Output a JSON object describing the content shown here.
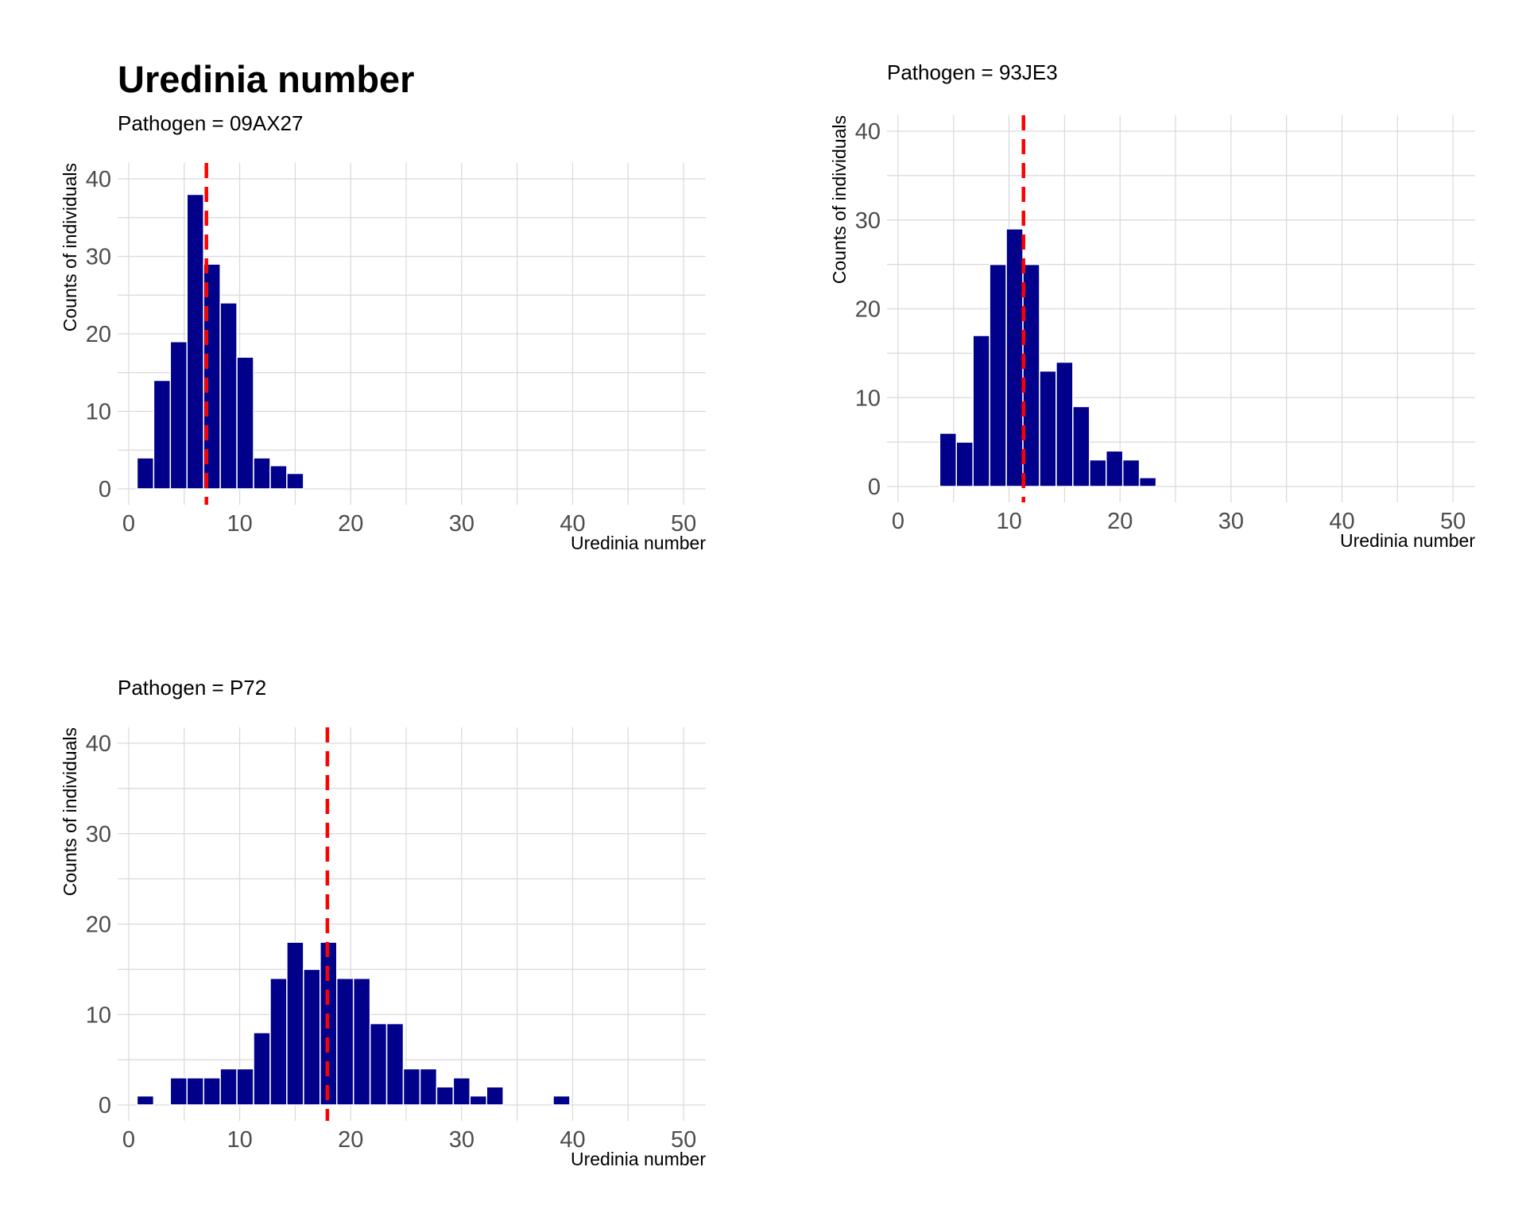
{
  "title": "Uredinia number",
  "colors": {
    "bar": "#00008B",
    "mean_line": "#FF0000",
    "grid": "#D9D9D9"
  },
  "chart_data": [
    {
      "type": "bar",
      "subtitle": "Pathogen = 09AX27",
      "xlabel": "Uredinia number",
      "ylabel": "Counts of individuals",
      "xlim": [
        -1,
        52
      ],
      "ylim": [
        0,
        40
      ],
      "xticks": [
        0,
        10,
        20,
        30,
        40,
        50
      ],
      "yticks": [
        0,
        10,
        20,
        30,
        40
      ],
      "bin_width": 1.5,
      "bins": [
        {
          "x": 1.5,
          "count": 4
        },
        {
          "x": 3,
          "count": 14
        },
        {
          "x": 4.5,
          "count": 19
        },
        {
          "x": 6,
          "count": 38
        },
        {
          "x": 7.5,
          "count": 29
        },
        {
          "x": 9,
          "count": 24
        },
        {
          "x": 10.5,
          "count": 17
        },
        {
          "x": 12,
          "count": 4
        },
        {
          "x": 13.5,
          "count": 3
        },
        {
          "x": 15,
          "count": 2
        }
      ],
      "mean": 7
    },
    {
      "type": "bar",
      "subtitle": "Pathogen = 93JE3",
      "xlabel": "Uredinia number",
      "ylabel": "Counts of individuals",
      "xlim": [
        -1,
        52
      ],
      "ylim": [
        0,
        40
      ],
      "xticks": [
        0,
        10,
        20,
        30,
        40,
        50
      ],
      "yticks": [
        0,
        10,
        20,
        30,
        40
      ],
      "bin_width": 1.5,
      "bins": [
        {
          "x": 4.5,
          "count": 6
        },
        {
          "x": 6,
          "count": 5
        },
        {
          "x": 7.5,
          "count": 17
        },
        {
          "x": 9,
          "count": 25
        },
        {
          "x": 10.5,
          "count": 29
        },
        {
          "x": 12,
          "count": 25
        },
        {
          "x": 13.5,
          "count": 13
        },
        {
          "x": 15,
          "count": 14
        },
        {
          "x": 16.5,
          "count": 9
        },
        {
          "x": 18,
          "count": 3
        },
        {
          "x": 19.5,
          "count": 4
        },
        {
          "x": 21,
          "count": 3
        },
        {
          "x": 22.5,
          "count": 1
        }
      ],
      "mean": 11.3
    },
    {
      "type": "bar",
      "subtitle": "Pathogen = P72",
      "xlabel": "Uredinia number",
      "ylabel": "Counts of individuals",
      "xlim": [
        -1,
        52
      ],
      "ylim": [
        0,
        40
      ],
      "xticks": [
        0,
        10,
        20,
        30,
        40,
        50
      ],
      "yticks": [
        0,
        10,
        20,
        30,
        40
      ],
      "bin_width": 1.5,
      "bins": [
        {
          "x": 1.5,
          "count": 1
        },
        {
          "x": 4.5,
          "count": 3
        },
        {
          "x": 6,
          "count": 3
        },
        {
          "x": 7.5,
          "count": 3
        },
        {
          "x": 9,
          "count": 4
        },
        {
          "x": 10.5,
          "count": 4
        },
        {
          "x": 12,
          "count": 8
        },
        {
          "x": 13.5,
          "count": 14
        },
        {
          "x": 15,
          "count": 18
        },
        {
          "x": 16.5,
          "count": 15
        },
        {
          "x": 18,
          "count": 18
        },
        {
          "x": 19.5,
          "count": 14
        },
        {
          "x": 21,
          "count": 14
        },
        {
          "x": 22.5,
          "count": 9
        },
        {
          "x": 24,
          "count": 9
        },
        {
          "x": 25.5,
          "count": 4
        },
        {
          "x": 27,
          "count": 4
        },
        {
          "x": 28.5,
          "count": 2
        },
        {
          "x": 30,
          "count": 3
        },
        {
          "x": 31.5,
          "count": 1
        },
        {
          "x": 33,
          "count": 2
        },
        {
          "x": 39,
          "count": 1
        }
      ],
      "mean": 17.9
    }
  ]
}
